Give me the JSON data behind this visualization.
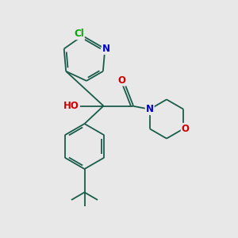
{
  "background_color": "#e8e8e8",
  "bond_color": "#1a5c4a",
  "atom_colors": {
    "N": "#0000cc",
    "O": "#cc0000",
    "Cl": "#00aa00",
    "H": "#888888"
  },
  "figsize": [
    3.0,
    3.0
  ],
  "dpi": 100,
  "lw": 1.3,
  "fontsize": 8.5
}
